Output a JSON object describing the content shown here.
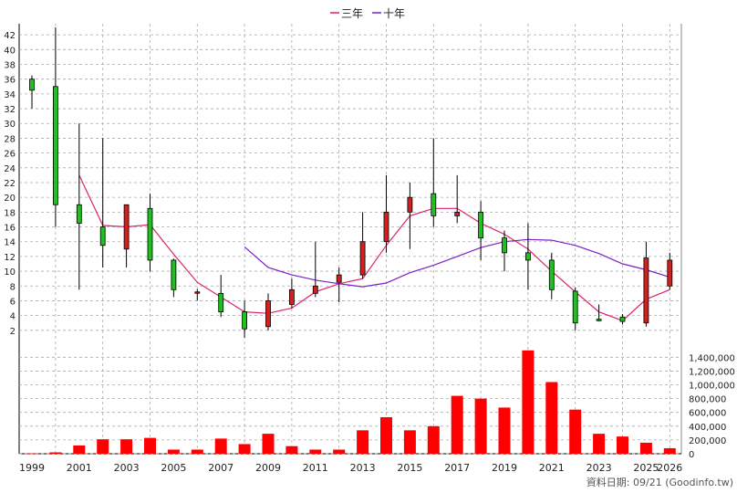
{
  "legend": {
    "ma3_label": "三年",
    "ma10_label": "十年",
    "ma3_color": "#e0206e",
    "ma10_color": "#7a1fc8"
  },
  "footer": {
    "source_text": "資料日期: 09/21  (Goodinfo.tw)"
  },
  "colors": {
    "up": "#d02020",
    "down": "#20c020",
    "grid": "#aaaaaa",
    "volume": "#ff0000"
  },
  "chart_data": [
    {
      "type": "candlestick",
      "years": [
        1999,
        2000,
        2001,
        2002,
        2003,
        2004,
        2005,
        2006,
        2007,
        2008,
        2009,
        2010,
        2011,
        2012,
        2013,
        2014,
        2015,
        2016,
        2017,
        2018,
        2019,
        2020,
        2021,
        2022,
        2023,
        2024,
        2025,
        2026
      ],
      "x_tick_labels": [
        "1999",
        "2001",
        "2003",
        "2005",
        "2007",
        "2009",
        "2011",
        "2013",
        "2015",
        "2017",
        "2019",
        "2021",
        "2023",
        "2025",
        "2026"
      ],
      "y_ticks": [
        2,
        4,
        6,
        8,
        10,
        12,
        14,
        16,
        18,
        20,
        22,
        24,
        26,
        28,
        30,
        32,
        34,
        36,
        38,
        40,
        42
      ],
      "ylim": [
        0,
        43.5
      ],
      "candles": [
        {
          "o": 36.0,
          "h": 36.5,
          "l": 32.0,
          "c": 34.5
        },
        {
          "o": 35.0,
          "h": 43.0,
          "l": 16.0,
          "c": 19.0
        },
        {
          "o": 19.0,
          "h": 30.0,
          "l": 7.5,
          "c": 16.5
        },
        {
          "o": 16.0,
          "h": 28.0,
          "l": 10.5,
          "c": 13.5
        },
        {
          "o": 13.0,
          "h": 19.0,
          "l": 10.5,
          "c": 19.0
        },
        {
          "o": 18.5,
          "h": 20.5,
          "l": 10.0,
          "c": 11.5
        },
        {
          "o": 11.5,
          "h": 11.7,
          "l": 6.5,
          "c": 7.5
        },
        {
          "o": 7.2,
          "h": 7.6,
          "l": 6.0,
          "c": 7.2
        },
        {
          "o": 7.0,
          "h": 9.5,
          "l": 3.8,
          "c": 4.5
        },
        {
          "o": 4.5,
          "h": 6.0,
          "l": 1.0,
          "c": 2.2
        },
        {
          "o": 2.5,
          "h": 7.0,
          "l": 2.0,
          "c": 6.0
        },
        {
          "o": 5.5,
          "h": 9.0,
          "l": 5.0,
          "c": 7.5
        },
        {
          "o": 7.0,
          "h": 14.0,
          "l": 6.5,
          "c": 8.0
        },
        {
          "o": 8.5,
          "h": 10.5,
          "l": 5.8,
          "c": 9.5
        },
        {
          "o": 9.5,
          "h": 18.0,
          "l": 9.0,
          "c": 14.0
        },
        {
          "o": 14.0,
          "h": 23.0,
          "l": 12.5,
          "c": 18.0
        },
        {
          "o": 18.0,
          "h": 22.0,
          "l": 13.0,
          "c": 20.0
        },
        {
          "o": 20.5,
          "h": 28.0,
          "l": 16.0,
          "c": 17.5
        },
        {
          "o": 17.5,
          "h": 23.0,
          "l": 16.5,
          "c": 18.0
        },
        {
          "o": 18.0,
          "h": 19.5,
          "l": 11.5,
          "c": 14.5
        },
        {
          "o": 14.5,
          "h": 15.5,
          "l": 10.0,
          "c": 12.5
        },
        {
          "o": 12.5,
          "h": 16.5,
          "l": 7.5,
          "c": 11.5
        },
        {
          "o": 11.5,
          "h": 12.5,
          "l": 6.2,
          "c": 7.5
        },
        {
          "o": 7.3,
          "h": 7.8,
          "l": 2.0,
          "c": 3.0
        },
        {
          "o": 3.5,
          "h": 5.5,
          "l": 3.2,
          "c": 3.3
        },
        {
          "o": 3.8,
          "h": 4.2,
          "l": 2.8,
          "c": 3.2
        },
        {
          "o": 3.0,
          "h": 14.0,
          "l": 2.5,
          "c": 11.8
        },
        {
          "o": 8.0,
          "h": 12.5,
          "l": 7.5,
          "c": 11.5
        }
      ],
      "ma3": [
        null,
        null,
        23.0,
        16.2,
        16.0,
        16.3,
        12.3,
        8.5,
        6.5,
        4.5,
        4.3,
        5.0,
        7.2,
        8.3,
        9.0,
        13.5,
        17.5,
        18.5,
        18.5,
        16.5,
        15.0,
        13.0,
        10.0,
        7.2,
        4.5,
        3.3,
        6.2,
        7.5
      ],
      "ma10": [
        null,
        null,
        null,
        null,
        null,
        null,
        null,
        null,
        null,
        13.3,
        10.5,
        9.5,
        8.8,
        8.3,
        7.9,
        8.4,
        9.8,
        10.8,
        12.0,
        13.2,
        14.0,
        14.3,
        14.2,
        13.5,
        12.4,
        11.0,
        10.2,
        9.2
      ]
    },
    {
      "type": "bar",
      "years": [
        1999,
        2000,
        2001,
        2002,
        2003,
        2004,
        2005,
        2006,
        2007,
        2008,
        2009,
        2010,
        2011,
        2012,
        2013,
        2014,
        2015,
        2016,
        2017,
        2018,
        2019,
        2020,
        2021,
        2022,
        2023,
        2024,
        2025,
        2026
      ],
      "values": [
        5000,
        20000,
        120000,
        210000,
        210000,
        230000,
        60000,
        60000,
        220000,
        140000,
        290000,
        110000,
        60000,
        60000,
        340000,
        530000,
        340000,
        400000,
        840000,
        800000,
        670000,
        1500000,
        1040000,
        640000,
        290000,
        250000,
        160000,
        80000
      ],
      "y_ticks": [
        0,
        200000,
        400000,
        600000,
        800000,
        1000000,
        1200000,
        1400000
      ],
      "y_tick_labels": [
        "0",
        "200,000",
        "400,000",
        "600,000",
        "800,000",
        "1,000,000",
        "1,200,000",
        "1,400,000"
      ],
      "ylim": [
        0,
        1550000
      ]
    }
  ]
}
